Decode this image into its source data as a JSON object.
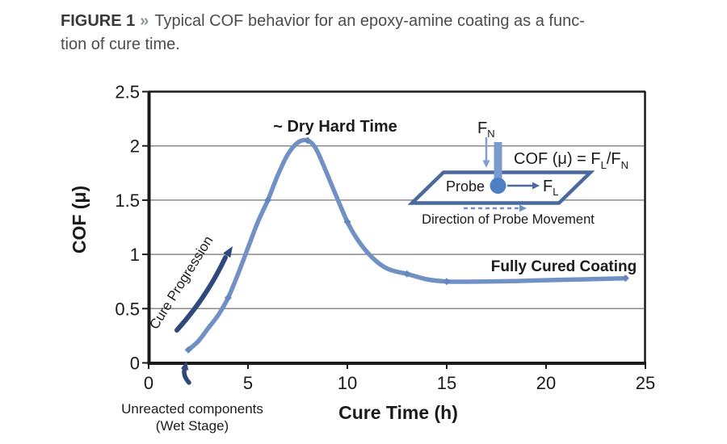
{
  "caption": {
    "figure_label": "FIGURE 1",
    "chevron": "»",
    "line1": "Typical COF behavior for an epoxy-amine coating as a func-",
    "line2": "tion of cure time."
  },
  "colors": {
    "curve": "#7191c4",
    "marker": "#6487bd",
    "dark_arrow": "#2e4a7b",
    "inset_stroke": "#49699f",
    "probe_circle": "#4d7fc2",
    "probe_bar": "#7b9bce",
    "light_arrow": "#7ea0d0",
    "dashed_arrow": "#6f92c8",
    "gridline": "#8a8a8a",
    "axis": "#1a1a1a"
  },
  "chart_data": {
    "type": "line",
    "title": "",
    "xlabel": "Cure Time (h)",
    "ylabel": "COF (μ)",
    "xlim": [
      0,
      25
    ],
    "ylim": [
      0,
      2.5
    ],
    "xticks": [
      0,
      5,
      10,
      15,
      20,
      25
    ],
    "xtick_labels": [
      "0",
      "5",
      "10",
      "15",
      "20",
      "25"
    ],
    "yticks": [
      0,
      0.5,
      1,
      1.5,
      2,
      2.5
    ],
    "ytick_labels": [
      "0",
      "0.5",
      "1",
      "1.5",
      "2",
      "2.5"
    ],
    "grid": "horizontal",
    "legend": "none",
    "series": [
      {
        "name": "COF vs cure time",
        "points": [
          [
            2,
            0.12
          ],
          [
            2.5,
            0.2
          ],
          [
            3,
            0.32
          ],
          [
            3.5,
            0.44
          ],
          [
            4,
            0.6
          ],
          [
            4.5,
            0.82
          ],
          [
            5,
            1.06
          ],
          [
            5.5,
            1.3
          ],
          [
            6,
            1.5
          ],
          [
            6.5,
            1.73
          ],
          [
            7,
            1.92
          ],
          [
            7.5,
            2.03
          ],
          [
            8,
            2.05
          ],
          [
            8.4,
            1.98
          ],
          [
            8.8,
            1.82
          ],
          [
            9.3,
            1.6
          ],
          [
            10,
            1.3
          ],
          [
            10.5,
            1.14
          ],
          [
            11,
            1.02
          ],
          [
            11.5,
            0.93
          ],
          [
            12,
            0.87
          ],
          [
            12.5,
            0.84
          ],
          [
            13,
            0.82
          ],
          [
            14,
            0.77
          ],
          [
            15,
            0.75
          ],
          [
            16,
            0.748
          ],
          [
            18,
            0.752
          ],
          [
            20,
            0.762
          ],
          [
            22,
            0.77
          ],
          [
            24,
            0.78
          ]
        ]
      }
    ],
    "marker_points": [
      [
        2,
        0.12
      ],
      [
        4,
        0.6
      ],
      [
        6,
        1.5
      ],
      [
        8,
        2.05
      ],
      [
        10,
        1.3
      ],
      [
        13,
        0.82
      ],
      [
        15,
        0.75
      ],
      [
        24,
        0.78
      ]
    ],
    "annotations": {
      "dry_hard_time": "~ Dry Hard Time",
      "fully_cured": "Fully Cured Coating",
      "cure_progression": "Cure Progression",
      "unreacted_line1": "Unreacted components",
      "unreacted_line2": "(Wet Stage)"
    }
  },
  "inset": {
    "fn_label": {
      "main": "F",
      "sub": "N"
    },
    "fl_label": {
      "main": "F",
      "sub": "L"
    },
    "formula": {
      "part1": "COF (μ) = F",
      "sub1": "L",
      "part2": "/F",
      "sub2": "N"
    },
    "probe_label": "Probe",
    "direction_label": "Direction of Probe Movement"
  }
}
